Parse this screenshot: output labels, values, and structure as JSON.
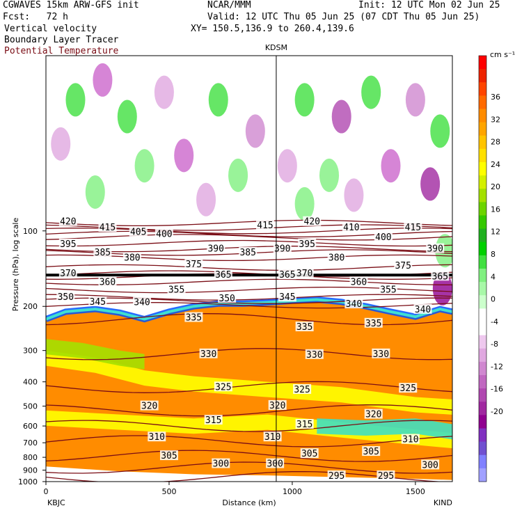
{
  "header": {
    "model": "CGWAVES 15km ARW-GFS init",
    "org": "NCAR/MMM",
    "init": "Init: 12 UTC Mon 02 Jun 25",
    "fcst": "Fcst:   72 h",
    "valid": "Valid: 12 UTC Thu 05 Jun 25 (07 CDT Thu 05 Jun 25)",
    "field1": "Vertical velocity",
    "xy": "XY= 150.5,136.9 to 260.4,139.6",
    "field2": "Boundary Layer Tracer",
    "field3": "Potential Temperature",
    "field3_color": "#7a0d15"
  },
  "chart_data": {
    "type": "heatmap",
    "xlabel": "Distance (km)",
    "ylabel": "Pressure (hPa), log scale",
    "x_ticks": [
      0,
      500,
      1000,
      1500
    ],
    "y_ticks": [
      100,
      200,
      300,
      400,
      500,
      600,
      700,
      800,
      900,
      1000
    ],
    "xlim": [
      0,
      1650
    ],
    "ylim": [
      1000,
      20
    ],
    "y_scale": "log",
    "left_station": "KBJC",
    "right_station": "KIND",
    "cross_marker": {
      "label": "KDSM",
      "x": 935
    },
    "colorbar": {
      "unit": "cm s⁻¹",
      "labels": [
        "36",
        "32",
        "28",
        "24",
        "20",
        "16",
        "12",
        "8",
        "4",
        "0",
        "-4",
        "-8",
        "-12",
        "-16",
        "-20"
      ],
      "colors": [
        "#ff0000",
        "#ee2400",
        "#ff4500",
        "#ff6a00",
        "#ff8c00",
        "#ffa500",
        "#ffc400",
        "#ffe000",
        "#ffff00",
        "#d4f000",
        "#a4e000",
        "#6cd400",
        "#34c800",
        "#20b020",
        "#00d000",
        "#40e040",
        "#80f080",
        "#a8f8a8",
        "#ccffcc",
        "#ffffff",
        "#ffffff",
        "#eec8ee",
        "#e0a8e0",
        "#d088d0",
        "#c068c0",
        "#b048b0",
        "#a028a0",
        "#900090",
        "#8030c0",
        "#7050d0",
        "#8080ff",
        "#a0a0ff"
      ]
    },
    "theta_contours": [
      {
        "value": 295,
        "p": 960
      },
      {
        "value": 300,
        "p": 880
      },
      {
        "value": 305,
        "p": 790
      },
      {
        "value": 310,
        "p": 690
      },
      {
        "value": 315,
        "p": 600
      },
      {
        "value": 320,
        "p": 520
      },
      {
        "value": 325,
        "p": 420
      },
      {
        "value": 330,
        "p": 310
      },
      {
        "value": 335,
        "p": 225
      },
      {
        "value": 340,
        "p": 198
      },
      {
        "value": 345,
        "p": 190
      },
      {
        "value": 350,
        "p": 184
      },
      {
        "value": 355,
        "p": 172
      },
      {
        "value": 360,
        "p": 160
      },
      {
        "value": 365,
        "p": 152
      },
      {
        "value": 370,
        "p": 148
      },
      {
        "value": 375,
        "p": 140
      },
      {
        "value": 380,
        "p": 128
      },
      {
        "value": 385,
        "p": 122
      },
      {
        "value": 390,
        "p": 118
      },
      {
        "value": 395,
        "p": 112
      },
      {
        "value": 400,
        "p": 106
      },
      {
        "value": 405,
        "p": 103
      },
      {
        "value": 410,
        "p": 100
      },
      {
        "value": 415,
        "p": 97
      },
      {
        "value": 420,
        "p": 93
      }
    ],
    "theta_labels": [
      {
        "text": "420",
        "x": 90,
        "p": 92
      },
      {
        "text": "415",
        "x": 250,
        "p": 97
      },
      {
        "text": "405",
        "x": 375,
        "p": 101
      },
      {
        "text": "400",
        "x": 480,
        "p": 103
      },
      {
        "text": "395",
        "x": 90,
        "p": 113
      },
      {
        "text": "385",
        "x": 230,
        "p": 122
      },
      {
        "text": "380",
        "x": 350,
        "p": 128
      },
      {
        "text": "375",
        "x": 600,
        "p": 136
      },
      {
        "text": "390",
        "x": 690,
        "p": 118
      },
      {
        "text": "385",
        "x": 820,
        "p": 122
      },
      {
        "text": "390",
        "x": 960,
        "p": 118
      },
      {
        "text": "415",
        "x": 890,
        "p": 95
      },
      {
        "text": "420",
        "x": 1080,
        "p": 92
      },
      {
        "text": "395",
        "x": 1060,
        "p": 113
      },
      {
        "text": "380",
        "x": 1180,
        "p": 128
      },
      {
        "text": "370",
        "x": 1050,
        "p": 148
      },
      {
        "text": "365",
        "x": 980,
        "p": 150
      },
      {
        "text": "365",
        "x": 720,
        "p": 150
      },
      {
        "text": "410",
        "x": 1240,
        "p": 97
      },
      {
        "text": "400",
        "x": 1370,
        "p": 106
      },
      {
        "text": "375",
        "x": 1450,
        "p": 138
      },
      {
        "text": "415",
        "x": 1490,
        "p": 97
      },
      {
        "text": "390",
        "x": 1580,
        "p": 118
      },
      {
        "text": "365",
        "x": 1600,
        "p": 152
      },
      {
        "text": "370",
        "x": 90,
        "p": 148
      },
      {
        "text": "360",
        "x": 250,
        "p": 160
      },
      {
        "text": "350",
        "x": 80,
        "p": 184
      },
      {
        "text": "345",
        "x": 210,
        "p": 192
      },
      {
        "text": "340",
        "x": 390,
        "p": 193
      },
      {
        "text": "355",
        "x": 530,
        "p": 172
      },
      {
        "text": "350",
        "x": 735,
        "p": 186
      },
      {
        "text": "345",
        "x": 980,
        "p": 184
      },
      {
        "text": "360",
        "x": 1270,
        "p": 160
      },
      {
        "text": "355",
        "x": 1390,
        "p": 172
      },
      {
        "text": "340",
        "x": 1250,
        "p": 196
      },
      {
        "text": "340",
        "x": 1530,
        "p": 206
      },
      {
        "text": "335",
        "x": 600,
        "p": 222
      },
      {
        "text": "335",
        "x": 1050,
        "p": 242
      },
      {
        "text": "335",
        "x": 1330,
        "p": 234
      },
      {
        "text": "330",
        "x": 660,
        "p": 310
      },
      {
        "text": "330",
        "x": 1090,
        "p": 312
      },
      {
        "text": "330",
        "x": 1360,
        "p": 310
      },
      {
        "text": "325",
        "x": 720,
        "p": 420
      },
      {
        "text": "325",
        "x": 1040,
        "p": 430
      },
      {
        "text": "325",
        "x": 1470,
        "p": 425
      },
      {
        "text": "320",
        "x": 420,
        "p": 500
      },
      {
        "text": "320",
        "x": 940,
        "p": 498
      },
      {
        "text": "320",
        "x": 1330,
        "p": 540
      },
      {
        "text": "315",
        "x": 680,
        "p": 570
      },
      {
        "text": "315",
        "x": 1050,
        "p": 592
      },
      {
        "text": "310",
        "x": 450,
        "p": 665
      },
      {
        "text": "310",
        "x": 920,
        "p": 665
      },
      {
        "text": "310",
        "x": 1480,
        "p": 680
      },
      {
        "text": "305",
        "x": 500,
        "p": 790
      },
      {
        "text": "305",
        "x": 1070,
        "p": 775
      },
      {
        "text": "305",
        "x": 1320,
        "p": 760
      },
      {
        "text": "300",
        "x": 710,
        "p": 850
      },
      {
        "text": "300",
        "x": 930,
        "p": 850
      },
      {
        "text": "300",
        "x": 1560,
        "p": 860
      },
      {
        "text": "295",
        "x": 1180,
        "p": 950
      },
      {
        "text": "295",
        "x": 1380,
        "p": 950
      }
    ],
    "tropopause_p": 150,
    "tracer_top": [
      [
        0,
        225
      ],
      [
        80,
        210
      ],
      [
        200,
        205
      ],
      [
        300,
        212
      ],
      [
        400,
        225
      ],
      [
        500,
        210
      ],
      [
        600,
        200
      ],
      [
        700,
        195
      ],
      [
        800,
        195
      ],
      [
        900,
        193
      ],
      [
        1000,
        190
      ],
      [
        1100,
        188
      ],
      [
        1200,
        192
      ],
      [
        1300,
        200
      ],
      [
        1400,
        210
      ],
      [
        1500,
        220
      ],
      [
        1600,
        205
      ],
      [
        1650,
        210
      ]
    ]
  }
}
